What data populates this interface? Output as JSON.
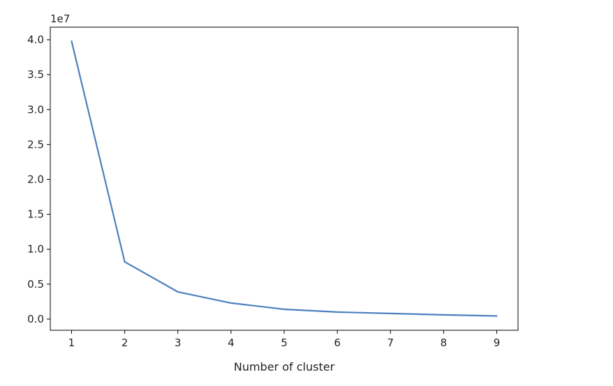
{
  "chart_data": {
    "type": "line",
    "title": "",
    "xlabel": "Number of cluster",
    "ylabel": "",
    "y_offset_label": "1e7",
    "x_ticks": [
      "1",
      "2",
      "3",
      "4",
      "5",
      "6",
      "7",
      "8",
      "9"
    ],
    "y_ticks": [
      "0.0",
      "0.5",
      "1.0",
      "1.5",
      "2.0",
      "2.5",
      "3.0",
      "3.5",
      "4.0"
    ],
    "xlim": [
      0.6,
      9.4
    ],
    "ylim": [
      -0.16,
      4.18
    ],
    "grid": false,
    "legend": "none",
    "series": [
      {
        "color": "#4c80bd",
        "x": [
          1,
          2,
          3,
          4,
          5,
          6,
          7,
          8,
          9
        ],
        "y": [
          3.98,
          0.82,
          0.39,
          0.23,
          0.14,
          0.1,
          0.08,
          0.06,
          0.045
        ]
      }
    ]
  }
}
